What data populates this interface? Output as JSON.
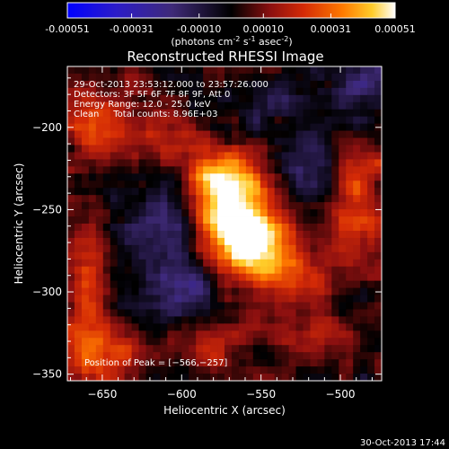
{
  "colorbar": {
    "tick_labels": [
      "-0.00051",
      "-0.00031",
      "-0.00010",
      "0.00010",
      "0.00031",
      "0.00051"
    ],
    "units_main": "(photons cm",
    "units_exp1": "-2",
    "units_mid": " s",
    "units_exp2": "-1",
    "units_mid2": " asec",
    "units_exp3": "-2",
    "units_close": ")"
  },
  "chart_data": {
    "type": "heatmap",
    "title": "Reconstructed RHESSI Image",
    "xlabel": "Heliocentric X (arcsec)",
    "ylabel": "Heliocentric Y (arcsec)",
    "xlim": [
      -672,
      -474
    ],
    "ylim": [
      -354,
      -163
    ],
    "x_ticks": [
      -650,
      -600,
      -550,
      -500
    ],
    "y_ticks": [
      -350,
      -300,
      -250,
      -200
    ],
    "x_tick_labels": [
      "−650",
      "−600",
      "−550",
      "−500"
    ],
    "y_tick_labels": [
      "−350",
      "−300",
      "−250",
      "−200"
    ],
    "color_range": [
      -0.00051,
      0.00051
    ],
    "peak": [
      -566,
      -257
    ],
    "annotations": [
      "29-Oct-2013 23:53:12.000 to 23:57:26.000",
      "Detectors: 3F 5F 6F 7F 8F 9F, Att 0",
      "Energy Range: 12.0 - 25.0 keV",
      "Clean     Total counts: 8.96E+03"
    ],
    "peak_label": "Position of Peak = [−566,−257]",
    "sources": [
      {
        "x": -566,
        "y": -255,
        "amp": 0.00052,
        "sx": 18,
        "sy": 22
      },
      {
        "x": -578,
        "y": -232,
        "amp": 0.0003,
        "sx": 14,
        "sy": 14
      },
      {
        "x": -548,
        "y": -272,
        "amp": 0.0003,
        "sx": 16,
        "sy": 12
      },
      {
        "x": -530,
        "y": -292,
        "amp": 0.00022,
        "sx": 14,
        "sy": 12
      },
      {
        "x": -488,
        "y": -250,
        "amp": 0.00028,
        "sx": 12,
        "sy": 24
      },
      {
        "x": -655,
        "y": -198,
        "amp": 0.00022,
        "sx": 14,
        "sy": 18
      },
      {
        "x": -660,
        "y": -300,
        "amp": 0.0002,
        "sx": 10,
        "sy": 36
      },
      {
        "x": -650,
        "y": -340,
        "amp": 0.00024,
        "sx": 16,
        "sy": 10
      },
      {
        "x": -580,
        "y": -330,
        "amp": 0.00016,
        "sx": 16,
        "sy": 10
      },
      {
        "x": -520,
        "y": -325,
        "amp": 0.00014,
        "sx": 14,
        "sy": 10
      },
      {
        "x": -615,
        "y": -205,
        "amp": 0.00012,
        "sx": 14,
        "sy": 12
      },
      {
        "x": -610,
        "y": -262,
        "amp": -0.0002,
        "sx": 22,
        "sy": 22
      },
      {
        "x": -520,
        "y": -230,
        "amp": -0.00016,
        "sx": 16,
        "sy": 14
      },
      {
        "x": -545,
        "y": -185,
        "amp": -0.00014,
        "sx": 16,
        "sy": 12
      },
      {
        "x": -492,
        "y": -175,
        "amp": -0.00018,
        "sx": 12,
        "sy": 12
      },
      {
        "x": -600,
        "y": -300,
        "amp": -0.00014,
        "sx": 18,
        "sy": 12
      }
    ]
  },
  "timestamp": "30-Oct-2013 17:44"
}
